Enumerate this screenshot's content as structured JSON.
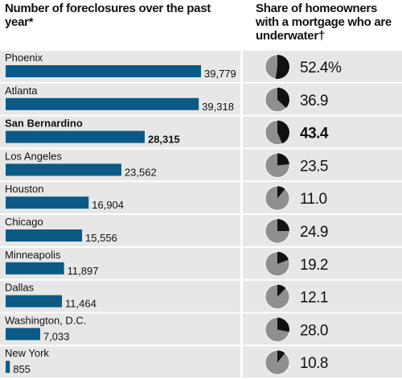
{
  "chart_data": [
    {
      "type": "bar",
      "title": "Number of foreclosures over the past year*",
      "categories": [
        "Phoenix",
        "Atlanta",
        "San Bernardino",
        "Los Angeles",
        "Houston",
        "Chicago",
        "Minneapolis",
        "Dallas",
        "Washington, D.C.",
        "New York"
      ],
      "values": [
        39779,
        39318,
        28315,
        23562,
        16904,
        15556,
        11897,
        11464,
        7033,
        855
      ],
      "value_labels": [
        "39,779",
        "39,318",
        "28,315",
        "23,562",
        "16,904",
        "15,556",
        "11,897",
        "11,464",
        "7,033",
        "855"
      ],
      "color": "#0b5a86",
      "highlight": [
        2
      ]
    },
    {
      "type": "pie",
      "title": "Share of homeowners with a mortgage who are underwater†",
      "values": [
        52.4,
        36.9,
        43.4,
        23.5,
        11.0,
        24.9,
        19.2,
        12.1,
        28.0,
        10.8
      ],
      "value_labels": [
        "52.4%",
        "36.9",
        "43.4",
        "23.5",
        "11.0",
        "24.9",
        "19.2",
        "12.1",
        "28.0",
        "10.8"
      ],
      "colors": [
        "#111111",
        "#8f8f8f"
      ],
      "highlight": [
        2
      ]
    }
  ]
}
